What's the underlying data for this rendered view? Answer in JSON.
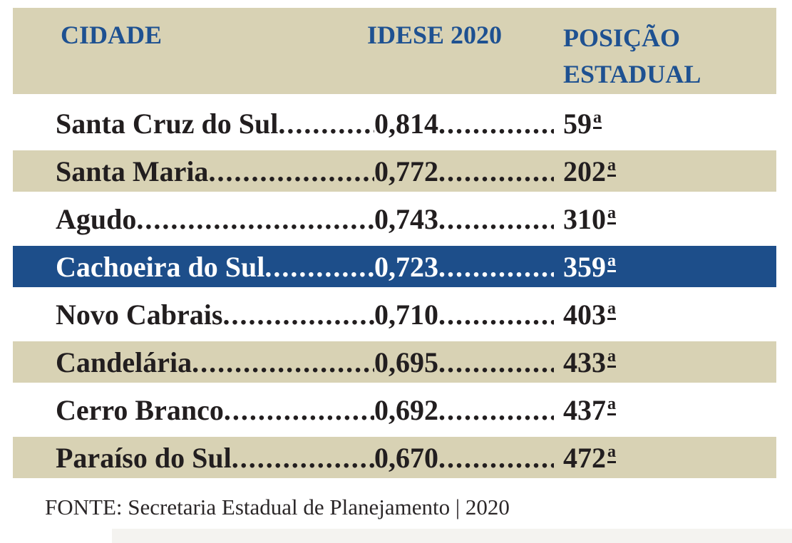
{
  "colors": {
    "header_bg": "#d8d2b4",
    "header_text": "#1e5191",
    "row_beige_bg": "#d8d2b4",
    "row_blue_bg": "#1d4e8a",
    "row_blue_text": "#ffffff",
    "row_text": "#221e1f",
    "footer_text": "#2b2728",
    "bottom_strip": "#f4f3f0"
  },
  "table": {
    "columns": [
      {
        "label": "CIDADE"
      },
      {
        "label": "IDESE 2020"
      },
      {
        "line1": "POSIÇÃO",
        "line2": "ESTADUAL"
      }
    ],
    "leader_dots": "................................................................",
    "ordinal_suffix": "a",
    "rows": [
      {
        "city": "Santa Cruz do Sul",
        "idese": "0,814",
        "position": "59",
        "highlight": "none"
      },
      {
        "city": "Santa Maria",
        "idese": "0,772",
        "position": "202",
        "highlight": "beige"
      },
      {
        "city": "Agudo",
        "idese": "0,743",
        "position": "310",
        "highlight": "none"
      },
      {
        "city": "Cachoeira do Sul",
        "idese": "0,723",
        "position": "359",
        "highlight": "blue"
      },
      {
        "city": "Novo Cabrais",
        "idese": "0,710",
        "position": "403",
        "highlight": "none"
      },
      {
        "city": "Candelária",
        "idese": "0,695",
        "position": "433",
        "highlight": "beige"
      },
      {
        "city": "Cerro Branco",
        "idese": "0,692",
        "position": "437",
        "highlight": "none"
      },
      {
        "city": "Paraíso do Sul",
        "idese": "0,670",
        "position": "472",
        "highlight": "beige"
      }
    ]
  },
  "footer": {
    "source": "FONTE: Secretaria Estadual de Planejamento | 2020"
  },
  "chart_data": {
    "type": "table",
    "title": "IDESE 2020",
    "columns": [
      "CIDADE",
      "IDESE 2020",
      "POSIÇÃO ESTADUAL"
    ],
    "rows": [
      [
        "Santa Cruz do Sul",
        0.814,
        "59ª"
      ],
      [
        "Santa Maria",
        0.772,
        "202ª"
      ],
      [
        "Agudo",
        0.743,
        "310ª"
      ],
      [
        "Cachoeira do Sul",
        0.723,
        "359ª"
      ],
      [
        "Novo Cabrais",
        0.71,
        "403ª"
      ],
      [
        "Candelária",
        0.695,
        "433ª"
      ],
      [
        "Cerro Branco",
        0.692,
        "437ª"
      ],
      [
        "Paraíso do Sul",
        0.67,
        "472ª"
      ]
    ],
    "highlighted_row": "Cachoeira do Sul",
    "source": "FONTE: Secretaria Estadual de Planejamento | 2020"
  }
}
